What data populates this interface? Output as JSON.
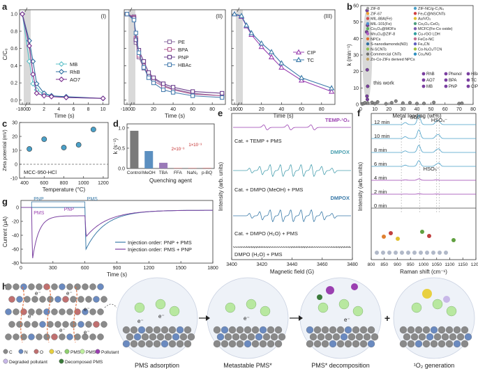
{
  "panel_labels": [
    "a",
    "b",
    "c",
    "d",
    "e",
    "f",
    "g",
    "h"
  ],
  "panel_a": {
    "sub_labels": [
      "(I)",
      "(II)",
      "(III)"
    ],
    "ylabel": "C/C₀",
    "xlabel": "Time (s)",
    "sub1_ticks": [
      "-1800",
      "0",
      "2",
      "4",
      "6",
      "8",
      "10"
    ],
    "sub2_ticks": [
      "-1800",
      "0",
      "20",
      "40",
      "60",
      "80"
    ],
    "sub3_ticks": [
      "-1800",
      "0",
      "20",
      "40",
      "60",
      "80"
    ],
    "yticks": [
      "0.0",
      "0.2",
      "0.4",
      "0.6",
      "0.8",
      "1.0"
    ],
    "legend1": [
      "MB",
      "RhB",
      "AO7"
    ],
    "legend2": [
      "PE",
      "BPA",
      "PNP",
      "HBAc"
    ],
    "legend3": [
      "CIP",
      "TC"
    ]
  },
  "chart_data": [
    {
      "type": "line",
      "title": "(I)",
      "xlabel": "Time (s)",
      "ylabel": "C/C₀",
      "x": [
        -1800,
        0,
        0.5,
        1,
        2,
        3,
        5,
        10
      ],
      "series": [
        {
          "name": "MB",
          "color": "#5bc0c8",
          "values": [
            1.0,
            0.45,
            0.19,
            0.12,
            0.07,
            0.05,
            0.03,
            0.02
          ]
        },
        {
          "name": "RhB",
          "color": "#2e6fa0",
          "values": [
            1.0,
            0.69,
            0.45,
            0.19,
            0.08,
            0.05,
            0.04,
            0.02
          ]
        },
        {
          "name": "AO7",
          "color": "#7a2e8e",
          "values": [
            1.0,
            0.63,
            0.3,
            0.08,
            0.05,
            0.04,
            0.03,
            0.02
          ]
        }
      ]
    },
    {
      "type": "line",
      "title": "(II)",
      "xlabel": "Time (s)",
      "ylabel": "C/C₀",
      "x": [
        -1800,
        0,
        2,
        5,
        10,
        15,
        20,
        30,
        40,
        60,
        90
      ],
      "series": [
        {
          "name": "PE",
          "color": "#8a6aa0",
          "values": [
            1.0,
            0.97,
            0.67,
            0.5,
            0.37,
            0.3,
            0.25,
            0.17,
            0.13,
            0.08,
            0.05
          ]
        },
        {
          "name": "BPA",
          "color": "#b05a90",
          "values": [
            1.0,
            0.96,
            0.72,
            0.52,
            0.4,
            0.28,
            0.22,
            0.16,
            0.12,
            0.07,
            0.05
          ]
        },
        {
          "name": "PNP",
          "color": "#6b3f8e",
          "values": [
            1.0,
            0.95,
            0.7,
            0.58,
            0.45,
            0.32,
            0.26,
            0.19,
            0.15,
            0.1,
            0.08
          ]
        },
        {
          "name": "HBAc",
          "color": "#4a7fb0",
          "values": [
            1.0,
            0.93,
            0.78,
            0.55,
            0.38,
            0.26,
            0.2,
            0.12,
            0.09,
            0.05,
            0.03
          ]
        }
      ]
    },
    {
      "type": "line",
      "title": "(III)",
      "xlabel": "Time (s)",
      "ylabel": "C/C₀",
      "x": [
        -1800,
        0,
        5,
        10,
        20,
        30,
        40,
        60,
        90
      ],
      "series": [
        {
          "name": "CIP",
          "color": "#9a3fb0",
          "values": [
            1.0,
            0.97,
            0.86,
            0.76,
            0.62,
            0.5,
            0.38,
            0.23,
            0.1
          ]
        },
        {
          "name": "TC",
          "color": "#3a7aa8",
          "values": [
            1.0,
            0.98,
            0.87,
            0.78,
            0.66,
            0.56,
            0.43,
            0.26,
            0.14
          ]
        }
      ]
    },
    {
      "type": "scatter",
      "xlabel": "Metal loading (wt%)",
      "ylabel": "k (min⁻¹)",
      "xlim": [
        0,
        80
      ],
      "ylim": [
        0,
        60
      ],
      "annotations": [
        "this work"
      ],
      "legend": [
        "ZIF-8",
        "ZIF-67",
        "MIL-88A(Fe)",
        "MIL-101(Fe)",
        "Co₃O₄@MOFs",
        "Mn₃O₄@ZIF-8",
        "NPCs",
        "S-nanodiamonds(ND)",
        "N-SCNTs",
        "Commercial CNTs",
        "Zn-Co-ZIFs derived NPCs",
        "ZIF-NC/g-C₃N₄",
        "Fe₃C@NSCNTs",
        "Au/VO₂",
        "Co₃O₄-CeO₂",
        "MCFC(Fe-Co oxide)",
        "Cu-rGO LDH",
        "FeCo-NC",
        "Fe₃CN",
        "Co-N₂O₃/TCN",
        "Co₃/NG",
        "RhB",
        "AO7",
        "MB",
        "Phenol",
        "BPA",
        "PNP",
        "HBAc",
        "TC",
        "CIP"
      ],
      "series": [
        {
          "name": "this work",
          "color": "#7a3fa0",
          "points": [
            [
              4.5,
              57
            ],
            [
              4.8,
              48
            ],
            [
              4.2,
              44
            ],
            [
              4.6,
              21
            ],
            [
              4.9,
              11
            ],
            [
              4.4,
              5
            ],
            [
              4.7,
              3
            ]
          ]
        },
        {
          "name": "literature",
          "color": "#888888",
          "points": [
            [
              1,
              0.3
            ],
            [
              2,
              0.5
            ],
            [
              3,
              1.0
            ],
            [
              5,
              0.8
            ],
            [
              8,
              1.2
            ],
            [
              10,
              0.5
            ],
            [
              12,
              1.5
            ],
            [
              18,
              0.4
            ],
            [
              22,
              1.0
            ],
            [
              25,
              2.0
            ],
            [
              30,
              0.8
            ],
            [
              35,
              1.0
            ],
            [
              40,
              0.5
            ],
            [
              45,
              0.6
            ],
            [
              52,
              1.2
            ],
            [
              70,
              0.5
            ],
            [
              72,
              0.7
            ]
          ]
        }
      ]
    },
    {
      "type": "scatter",
      "xlabel": "Temperature (°C)",
      "ylabel": "Zeta potential (mV)",
      "annotations": [
        "MCC-950-HCl"
      ],
      "x": [
        450,
        600,
        800,
        950,
        1100
      ],
      "series": [
        {
          "name": "MCC-950-HCl",
          "color": "#4aa0c8",
          "values": [
            11,
            18,
            12,
            14,
            25
          ]
        }
      ]
    },
    {
      "type": "bar",
      "xlabel": "Quenching agent",
      "ylabel": "k (s⁻¹)",
      "categories": [
        "Control",
        "MeOH",
        "TBA",
        "FFA",
        "NaN₃",
        "p-BQ"
      ],
      "values": [
        0.93,
        0.43,
        0.14,
        0.002,
        0.001,
        0.01
      ],
      "annotations": [
        "2×10⁻³",
        "1×10⁻³"
      ],
      "ylim": [
        0,
        1.1
      ]
    },
    {
      "type": "line",
      "xlabel": "Time (s)",
      "ylabel": "Current (μA)",
      "xlim": [
        0,
        1800
      ],
      "ylim": [
        -80,
        10
      ],
      "series": [
        {
          "name": "Injection order: PNP + PMS",
          "color": "#3a7aa8"
        },
        {
          "name": "Injection order: PMS + PNP",
          "color": "#7a3fa0"
        }
      ]
    }
  ],
  "panel_b": {
    "annotation": "this work",
    "yticks": [
      "0",
      "10",
      "20",
      "30",
      "40",
      "50",
      "60"
    ],
    "xticks": [
      "0",
      "10",
      "20",
      "30",
      "40",
      "50",
      "60",
      "70",
      "80"
    ]
  },
  "panel_c": {
    "yticks": [
      "-10",
      "0",
      "10",
      "20",
      "30"
    ],
    "xticks": [
      "400",
      "600",
      "800",
      "1000",
      "1200"
    ]
  },
  "panel_d": {
    "yticks": [
      "0.0",
      "0.5",
      "1.0"
    ]
  },
  "panel_e": {
    "xlabel": "Magnetic field (G)",
    "ylabel": "Intensity (arb. units)",
    "xticks": [
      "3400",
      "3420",
      "3440",
      "3460",
      "3480"
    ],
    "labels": [
      "TEMP-¹O₂",
      "Cat. + TEMP + PMS",
      "DMPOX",
      "Cat. + DMPO (MeOH) + PMS",
      "DMPOX",
      "Cat. + DMPO (H₂O) + PMS",
      "DMPO (H₂O) + PMS"
    ]
  },
  "panel_f": {
    "xlabel": "Raman shift (cm⁻¹)",
    "ylabel": "Intensity (arb. units)",
    "xticks": [
      "800",
      "850",
      "900",
      "950",
      "1000",
      "1050",
      "1100",
      "1150",
      "1200"
    ],
    "times": [
      "12 min",
      "10 min",
      "8 min",
      "6 min",
      "4 min",
      "2 min",
      "0 min"
    ],
    "peak_labels": [
      "SO₄²⁻",
      "HSO₄⁻",
      "HSO₅⁻"
    ],
    "star": "*"
  },
  "panel_g": {
    "xticks": [
      "0",
      "300",
      "600",
      "900",
      "1200",
      "1500",
      "1800"
    ],
    "yticks": [
      "0",
      "-20",
      "-40",
      "-60",
      "-80"
    ],
    "labels_top": [
      "PNP",
      "PMS"
    ],
    "labels_side": [
      "PMS",
      "PNP"
    ]
  },
  "panel_h": {
    "electron": "e⁻",
    "legend": [
      "C",
      "N",
      "O",
      "¹O₂",
      "PMS",
      "PMS*",
      "Pollutant",
      "Degraded pollutant",
      "Decomposed PMS"
    ],
    "steps": [
      "PMS adsorption",
      "Metastable PMS*",
      "PMS* decomposition",
      "¹O₂ generation"
    ],
    "plus": "+"
  }
}
